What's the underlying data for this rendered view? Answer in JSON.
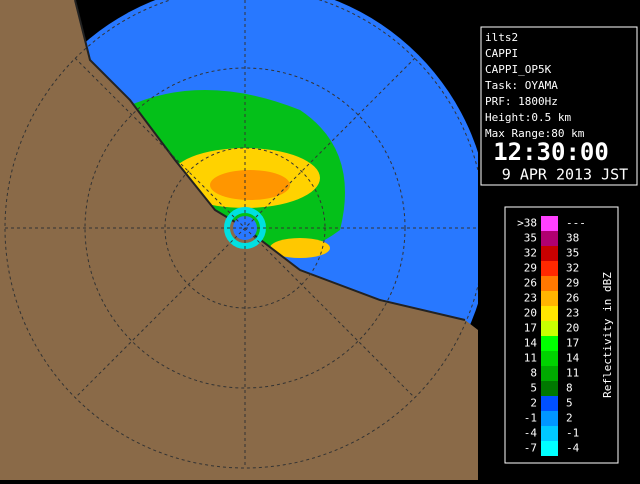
{
  "info": {
    "lines": [
      "ilts2",
      "CAPPI",
      "CAPPI_OP5K",
      "Task: OYAMA",
      "PRF: 1800Hz",
      "Height:0.5 km",
      "Max Range:80 km"
    ],
    "time": "12:30:00",
    "date": "9 APR 2013 JST"
  },
  "legend": {
    "title": "Reflectivity in dBZ",
    "rows": [
      {
        "low": ">38",
        "high": "---",
        "color": "#ff40ff"
      },
      {
        "low": "35",
        "high": "38",
        "color": "#b00070"
      },
      {
        "low": "32",
        "high": "35",
        "color": "#c80000"
      },
      {
        "low": "29",
        "high": "32",
        "color": "#ff2800"
      },
      {
        "low": "26",
        "high": "29",
        "color": "#ff7800"
      },
      {
        "low": "23",
        "high": "26",
        "color": "#ffb400"
      },
      {
        "low": "20",
        "high": "23",
        "color": "#ffe600"
      },
      {
        "low": "17",
        "high": "20",
        "color": "#c8ff00"
      },
      {
        "low": "14",
        "high": "17",
        "color": "#00ff00"
      },
      {
        "low": "11",
        "high": "14",
        "color": "#00d200"
      },
      {
        "low": "8",
        "high": "11",
        "color": "#00aa00"
      },
      {
        "low": "5",
        "high": "8",
        "color": "#007800"
      },
      {
        "low": "2",
        "high": "5",
        "color": "#0050ff"
      },
      {
        "low": "-1",
        "high": "2",
        "color": "#0096ff"
      },
      {
        "low": "-4",
        "high": "-1",
        "color": "#00c8ff"
      },
      {
        "low": "-7",
        "high": "-4",
        "color": "#00ffff"
      }
    ]
  }
}
